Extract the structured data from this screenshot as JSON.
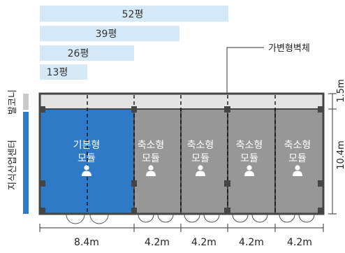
{
  "area_bars": [
    {
      "label": "52평",
      "value": 52
    },
    {
      "label": "39평",
      "value": 39
    },
    {
      "label": "26평",
      "value": 26
    },
    {
      "label": "13평",
      "value": 13
    }
  ],
  "callout": {
    "label": "가변형벽체"
  },
  "side_labels": {
    "balcony": "발코니",
    "center": "지식산업센터",
    "balcony_depth": "1.5m",
    "module_depth": "10.4m"
  },
  "modules": [
    {
      "line1": "기본형",
      "line2": "모듈",
      "width_label": "8.4m",
      "kind": "basic"
    },
    {
      "line1": "축소형",
      "line2": "모듈",
      "width_label": "4.2m",
      "kind": "reduced"
    },
    {
      "line1": "축소형",
      "line2": "모듈",
      "width_label": "4.2m",
      "kind": "reduced"
    },
    {
      "line1": "축소형",
      "line2": "모듈",
      "width_label": "4.2m",
      "kind": "reduced"
    },
    {
      "line1": "축소형",
      "line2": "모듈",
      "width_label": "4.2m",
      "kind": "reduced"
    }
  ],
  "colors": {
    "basic_module": "#2e7ac7",
    "reduced_module": "#979797",
    "balcony": "#e3e3e3",
    "area_bar": "#d5e9f8",
    "center_bar": "#2e7ac7",
    "balcony_bar": "#c8c8c8",
    "structure": "#454545"
  }
}
